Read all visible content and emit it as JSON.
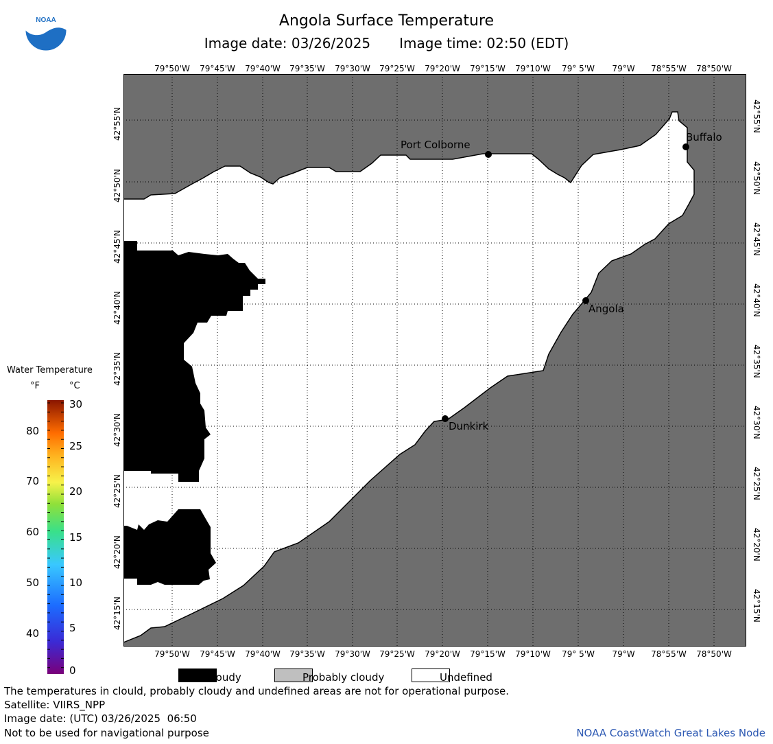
{
  "header": {
    "title": "Angola Surface Temperature",
    "image_date_label": "Image date: 03/26/2025",
    "image_time_label": "Image time: 02:50 (EDT)"
  },
  "logo": {
    "text": "NOAA"
  },
  "map": {
    "lon_ticks": [
      "79°50'W",
      "79°45'W",
      "79°40'W",
      "79°35'W",
      "79°30'W",
      "79°25'W",
      "79°20'W",
      "79°15'W",
      "79°10'W",
      "79° 5'W",
      "79°W",
      "78°55'W",
      "78°50'W"
    ],
    "lat_ticks": [
      "42°55'N",
      "42°50'N",
      "42°45'N",
      "42°40'N",
      "42°35'N",
      "42°30'N",
      "42°25'N",
      "42°20'N",
      "42°15'N"
    ],
    "cities": [
      {
        "name": "Port Colborne"
      },
      {
        "name": "Buffalo"
      },
      {
        "name": "Angola"
      },
      {
        "name": "Dunkirk"
      }
    ],
    "colors": {
      "land": "#6e6e6e",
      "cloudy": "#000000",
      "probably_cloudy": "#bfbfbf",
      "undefined": "#ffffff"
    }
  },
  "legend": {
    "title": "Water Temperature",
    "unit_f": "°F",
    "unit_c": "°C",
    "f_ticks": [
      "80",
      "70",
      "60",
      "50",
      "40"
    ],
    "c_ticks": [
      "30",
      "25",
      "20",
      "15",
      "10",
      "5",
      "0"
    ],
    "key": {
      "cloudy": "Cloudy",
      "probably_cloudy": "Probably cloudy",
      "undefined": "Undefined"
    }
  },
  "footer": {
    "disclaimer": "The temperatures in clould, probably cloudy and undefined areas are not for operational purpose.",
    "satellite": "Satellite: VIIRS_NPP",
    "utc_date": "Image date: (UTC) 03/26/2025  06:50",
    "nav_warning": "Not to be used for navigational purpose",
    "node": "NOAA CoastWatch Great Lakes Node"
  }
}
